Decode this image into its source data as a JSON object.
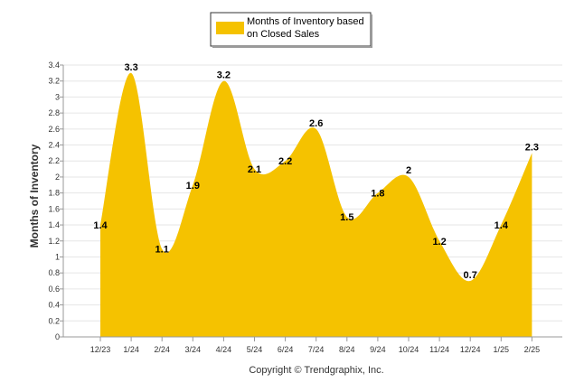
{
  "chart_data": {
    "type": "area",
    "categories": [
      "12/23",
      "1/24",
      "2/24",
      "3/24",
      "4/24",
      "5/24",
      "6/24",
      "7/24",
      "8/24",
      "9/24",
      "10/24",
      "11/24",
      "12/24",
      "1/25",
      "2/25"
    ],
    "series": [
      {
        "name": "Months of Inventory based on Closed Sales",
        "values": [
          1.4,
          3.3,
          1.1,
          1.9,
          3.2,
          2.1,
          2.2,
          2.6,
          1.5,
          1.8,
          2,
          1.2,
          0.7,
          1.4,
          2.3
        ],
        "labels": [
          "1.4",
          "3.3",
          "1.1",
          "1.9",
          "3.2",
          "2.1",
          "2.2",
          "2.6",
          "1.5",
          "1.8",
          "2",
          "1.2",
          "0.7",
          "1.4",
          "2.3"
        ],
        "color": "#F5C200"
      }
    ],
    "legend": {
      "line1": "Months of Inventory based",
      "line2": "on Closed Sales",
      "position": "top-center"
    },
    "ylabel": "Months of Inventory",
    "xlabel": "",
    "ylim": [
      0,
      3.4
    ],
    "yticks": [
      "0",
      "0.2",
      "0.4",
      "0.6",
      "0.8",
      "1",
      "1.2",
      "1.4",
      "1.6",
      "1.8",
      "2",
      "2.2",
      "2.4",
      "2.6",
      "2.8",
      "3",
      "3.2",
      "3.4"
    ],
    "grid": true,
    "copyright": "Copyright © Trendgraphix, Inc."
  }
}
